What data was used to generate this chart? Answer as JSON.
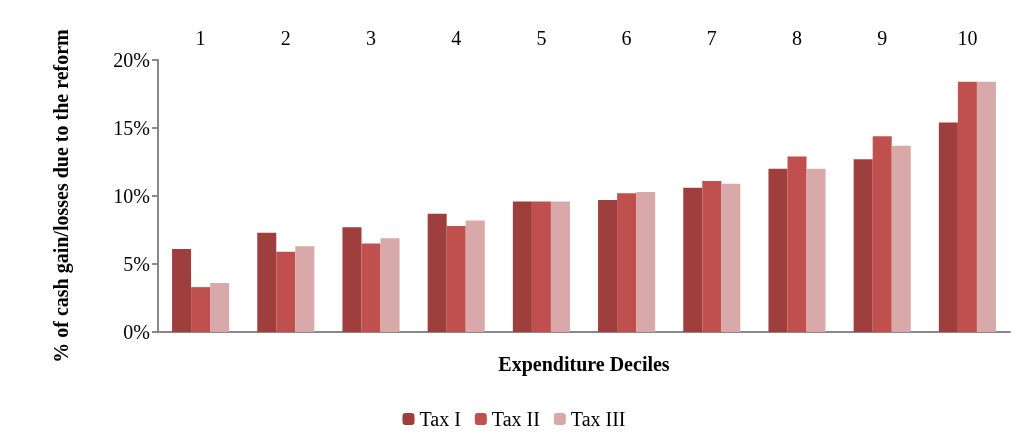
{
  "chart_data": {
    "type": "bar",
    "xlabel": "Expenditure Deciles",
    "ylabel": "% of cash gain/losses due to the reform",
    "categories": [
      "1",
      "2",
      "3",
      "4",
      "5",
      "6",
      "7",
      "8",
      "9",
      "10"
    ],
    "series": [
      {
        "name": "Tax I",
        "color": "#9e3f3d",
        "values": [
          6.1,
          7.3,
          7.7,
          8.7,
          9.6,
          9.7,
          10.6,
          12.0,
          12.7,
          15.4
        ]
      },
      {
        "name": "Tax II",
        "color": "#c0504d",
        "values": [
          3.3,
          5.9,
          6.5,
          7.8,
          9.6,
          10.2,
          11.1,
          12.9,
          14.4,
          18.4
        ]
      },
      {
        "name": "Tax III",
        "color": "#d9a9a9",
        "values": [
          3.6,
          6.3,
          6.9,
          8.2,
          9.6,
          10.3,
          10.9,
          12.0,
          13.7,
          18.4
        ]
      }
    ],
    "ylim": [
      0,
      20
    ],
    "yticks": [
      {
        "value": 0,
        "label": "0%"
      },
      {
        "value": 5,
        "label": "5%"
      },
      {
        "value": 10,
        "label": "10%"
      },
      {
        "value": 15,
        "label": "15%"
      },
      {
        "value": 20,
        "label": "20%"
      }
    ],
    "grid": false,
    "legend": "bottom"
  }
}
